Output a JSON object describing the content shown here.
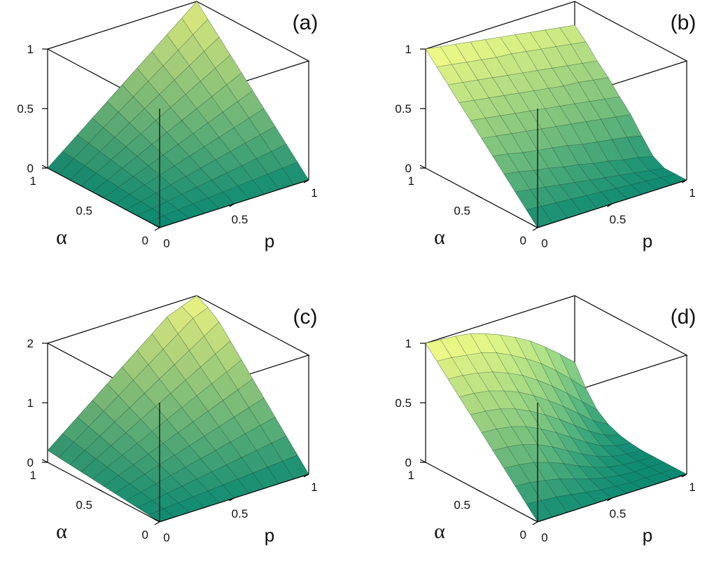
{
  "chart_data": [
    {
      "type": "surface",
      "panel_label": "(a)",
      "xlabel": "p",
      "ylabel": "α",
      "zlim": [
        0,
        1
      ],
      "z_ticks": [
        "0",
        "0.5",
        "1"
      ],
      "p_ticks": [
        "0",
        "0.5",
        "1"
      ],
      "alpha_ticks": [
        "0",
        "0.5",
        "1"
      ],
      "grid_p": [
        0,
        0.1,
        0.2,
        0.3,
        0.4,
        0.5,
        0.6,
        0.7,
        0.8,
        0.9,
        1
      ],
      "grid_alpha": [
        0,
        0.1,
        0.2,
        0.3,
        0.4,
        0.5,
        0.6,
        0.7,
        0.8,
        0.9,
        1
      ],
      "z": [
        [
          0,
          0,
          0,
          0,
          0,
          0,
          0,
          0,
          0,
          0,
          0
        ],
        [
          0,
          0.01,
          0.02,
          0.03,
          0.04,
          0.05,
          0.06,
          0.07,
          0.08,
          0.09,
          0.1
        ],
        [
          0,
          0.02,
          0.04,
          0.06,
          0.08,
          0.1,
          0.12,
          0.14,
          0.16,
          0.18,
          0.2
        ],
        [
          0,
          0.03,
          0.06,
          0.09,
          0.12,
          0.15,
          0.18,
          0.21,
          0.24,
          0.27,
          0.3
        ],
        [
          0,
          0.04,
          0.08,
          0.12,
          0.16,
          0.2,
          0.24,
          0.28,
          0.32,
          0.36,
          0.4
        ],
        [
          0,
          0.05,
          0.1,
          0.15,
          0.2,
          0.25,
          0.3,
          0.35,
          0.4,
          0.45,
          0.5
        ],
        [
          0,
          0.06,
          0.12,
          0.18,
          0.24,
          0.3,
          0.36,
          0.42,
          0.48,
          0.54,
          0.6
        ],
        [
          0,
          0.07,
          0.14,
          0.21,
          0.28,
          0.35,
          0.42,
          0.49,
          0.56,
          0.63,
          0.7
        ],
        [
          0,
          0.08,
          0.16,
          0.24,
          0.32,
          0.4,
          0.48,
          0.56,
          0.64,
          0.72,
          0.8
        ],
        [
          0,
          0.09,
          0.18,
          0.27,
          0.36,
          0.45,
          0.54,
          0.63,
          0.72,
          0.81,
          0.9
        ],
        [
          0,
          0.1,
          0.2,
          0.3,
          0.4,
          0.5,
          0.6,
          0.7,
          0.8,
          0.9,
          1
        ]
      ]
    },
    {
      "type": "surface",
      "panel_label": "(b)",
      "xlabel": "p",
      "ylabel": "α",
      "zlim": [
        0,
        1
      ],
      "z_ticks": [
        "0",
        "0.5",
        "1"
      ],
      "p_ticks": [
        "0",
        "0.5",
        "1"
      ],
      "alpha_ticks": [
        "0",
        "0.5",
        "1"
      ],
      "grid_p": [
        0,
        0.1,
        0.2,
        0.3,
        0.4,
        0.5,
        0.6,
        0.7,
        0.8,
        0.9,
        1
      ],
      "grid_alpha": [
        0,
        0.1,
        0.2,
        0.3,
        0.4,
        0.5,
        0.6,
        0.7,
        0.8,
        0.9,
        1
      ],
      "z": [
        [
          0,
          0,
          0,
          0,
          0,
          0,
          0,
          0,
          0,
          0,
          0
        ],
        [
          0.1,
          0.09,
          0.08,
          0.07,
          0.06,
          0.05,
          0.04,
          0.03,
          0.02,
          0.01,
          0
        ],
        [
          0.2,
          0.18,
          0.16,
          0.14,
          0.12,
          0.1,
          0.08,
          0.06,
          0.04,
          0.02,
          0
        ],
        [
          0.3,
          0.28,
          0.25,
          0.23,
          0.2,
          0.18,
          0.15,
          0.13,
          0.1,
          0.08,
          0.05
        ],
        [
          0.4,
          0.38,
          0.35,
          0.33,
          0.31,
          0.29,
          0.26,
          0.24,
          0.22,
          0.2,
          0.17
        ],
        [
          0.5,
          0.48,
          0.46,
          0.44,
          0.42,
          0.4,
          0.38,
          0.36,
          0.34,
          0.32,
          0.3
        ],
        [
          0.6,
          0.58,
          0.56,
          0.54,
          0.52,
          0.5,
          0.48,
          0.46,
          0.44,
          0.42,
          0.4
        ],
        [
          0.7,
          0.68,
          0.66,
          0.64,
          0.62,
          0.6,
          0.58,
          0.56,
          0.55,
          0.53,
          0.51
        ],
        [
          0.8,
          0.78,
          0.76,
          0.74,
          0.72,
          0.7,
          0.68,
          0.66,
          0.64,
          0.62,
          0.6
        ],
        [
          0.9,
          0.88,
          0.86,
          0.84,
          0.82,
          0.81,
          0.79,
          0.77,
          0.75,
          0.73,
          0.71
        ],
        [
          1,
          0.98,
          0.96,
          0.94,
          0.92,
          0.9,
          0.88,
          0.86,
          0.84,
          0.82,
          0.8
        ]
      ]
    },
    {
      "type": "surface",
      "panel_label": "(c)",
      "xlabel": "p",
      "ylabel": "α",
      "zlim": [
        0,
        2
      ],
      "z_ticks": [
        "0",
        "1",
        "2"
      ],
      "p_ticks": [
        "0",
        "0.5",
        "1"
      ],
      "alpha_ticks": [
        "0",
        "0.5",
        "1"
      ],
      "grid_p": [
        0,
        0.1,
        0.2,
        0.3,
        0.4,
        0.5,
        0.6,
        0.7,
        0.8,
        0.9,
        1
      ],
      "grid_alpha": [
        0,
        0.1,
        0.2,
        0.3,
        0.4,
        0.5,
        0.6,
        0.7,
        0.8,
        0.9,
        1
      ],
      "z": [
        [
          0,
          0,
          0,
          0,
          0,
          0,
          0,
          0,
          0,
          0,
          0
        ],
        [
          0.02,
          0.04,
          0.06,
          0.08,
          0.1,
          0.12,
          0.14,
          0.16,
          0.18,
          0.2,
          0.22
        ],
        [
          0.04,
          0.08,
          0.12,
          0.16,
          0.2,
          0.24,
          0.28,
          0.32,
          0.36,
          0.4,
          0.44
        ],
        [
          0.06,
          0.12,
          0.18,
          0.24,
          0.3,
          0.36,
          0.42,
          0.48,
          0.54,
          0.6,
          0.66
        ],
        [
          0.08,
          0.16,
          0.24,
          0.32,
          0.4,
          0.48,
          0.56,
          0.64,
          0.72,
          0.8,
          0.88
        ],
        [
          0.1,
          0.2,
          0.3,
          0.4,
          0.5,
          0.6,
          0.7,
          0.8,
          0.9,
          1,
          1.1
        ],
        [
          0.12,
          0.24,
          0.36,
          0.48,
          0.6,
          0.72,
          0.84,
          0.96,
          1.08,
          1.2,
          1.32
        ],
        [
          0.14,
          0.28,
          0.42,
          0.56,
          0.7,
          0.84,
          0.98,
          1.12,
          1.26,
          1.4,
          1.54
        ],
        [
          0.16,
          0.32,
          0.48,
          0.64,
          0.8,
          0.96,
          1.12,
          1.28,
          1.44,
          1.6,
          1.76
        ],
        [
          0.18,
          0.36,
          0.54,
          0.72,
          0.9,
          1.08,
          1.26,
          1.44,
          1.62,
          1.8,
          1.9
        ],
        [
          0.2,
          0.4,
          0.6,
          0.8,
          1,
          1.2,
          1.4,
          1.6,
          1.8,
          1.9,
          2
        ]
      ]
    },
    {
      "type": "surface",
      "panel_label": "(d)",
      "xlabel": "p",
      "ylabel": "α",
      "zlim": [
        0,
        1
      ],
      "z_ticks": [
        "0",
        "0.5",
        "1"
      ],
      "p_ticks": [
        "0",
        "0.5",
        "1"
      ],
      "alpha_ticks": [
        "0",
        "0.5",
        "1"
      ],
      "grid_p": [
        0,
        0.1,
        0.2,
        0.3,
        0.4,
        0.5,
        0.6,
        0.7,
        0.8,
        0.9,
        1
      ],
      "grid_alpha": [
        0,
        0.1,
        0.2,
        0.3,
        0.4,
        0.5,
        0.6,
        0.7,
        0.8,
        0.9,
        1
      ],
      "z": [
        [
          0,
          0,
          0,
          0,
          0,
          0,
          0,
          0,
          0,
          0,
          0
        ],
        [
          0.1,
          0.09,
          0.08,
          0.06,
          0.04,
          0.02,
          0.01,
          0,
          0,
          0,
          0
        ],
        [
          0.2,
          0.19,
          0.17,
          0.14,
          0.1,
          0.06,
          0.03,
          0.01,
          0,
          0,
          0
        ],
        [
          0.3,
          0.29,
          0.27,
          0.23,
          0.18,
          0.12,
          0.07,
          0.03,
          0.01,
          0,
          0
        ],
        [
          0.4,
          0.39,
          0.37,
          0.33,
          0.27,
          0.2,
          0.13,
          0.07,
          0.03,
          0.01,
          0
        ],
        [
          0.5,
          0.49,
          0.47,
          0.43,
          0.37,
          0.3,
          0.22,
          0.14,
          0.07,
          0.03,
          0.01
        ],
        [
          0.6,
          0.59,
          0.57,
          0.53,
          0.47,
          0.4,
          0.32,
          0.23,
          0.14,
          0.07,
          0.03
        ],
        [
          0.7,
          0.69,
          0.67,
          0.63,
          0.58,
          0.51,
          0.43,
          0.34,
          0.24,
          0.14,
          0.07
        ],
        [
          0.8,
          0.79,
          0.77,
          0.74,
          0.69,
          0.63,
          0.55,
          0.46,
          0.36,
          0.25,
          0.14
        ],
        [
          0.9,
          0.89,
          0.87,
          0.85,
          0.81,
          0.75,
          0.68,
          0.6,
          0.5,
          0.39,
          0.27
        ],
        [
          1,
          0.99,
          0.98,
          0.96,
          0.92,
          0.87,
          0.81,
          0.74,
          0.65,
          0.55,
          0.44
        ]
      ]
    }
  ],
  "colors": {
    "low": "#0e8a72",
    "high": "#f4fb86",
    "box": "#000000"
  }
}
